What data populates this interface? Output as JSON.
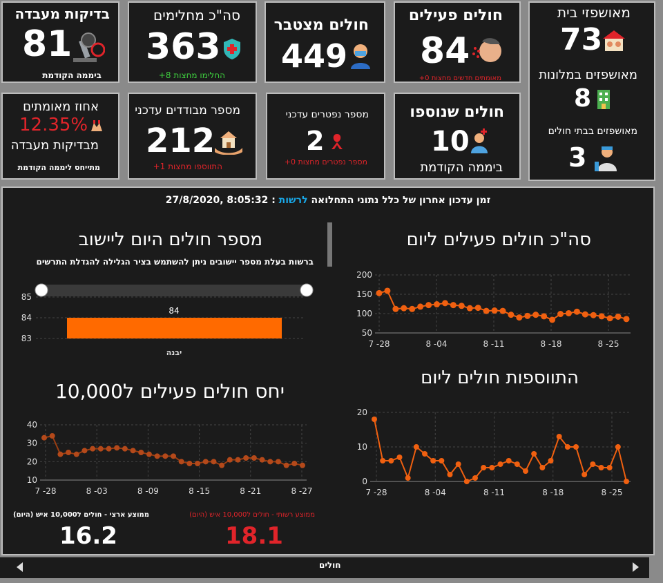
{
  "cards": {
    "lab": {
      "title": "בדיקות מעבדה",
      "value": "81",
      "sub": "ביממה הקודמת"
    },
    "recovered": {
      "title": "סה\"כ מחלימים",
      "value": "363",
      "sub": "החלימו מחצות 8+"
    },
    "cumulative": {
      "title": "חולים מצטבר",
      "value": "449"
    },
    "active": {
      "title": "חולים פעילים",
      "value": "84",
      "sub": "מאומתים חדשים מחצות 0+"
    },
    "hosp_home": {
      "title": "מאושפזי בית",
      "value": "73"
    },
    "hosp_hotel": {
      "title": "מאושפזים במלונות",
      "value": "8"
    },
    "hosp_hospital": {
      "title": "מאושפזים בבתי חולים",
      "value": "3"
    },
    "positive_pct": {
      "title": "אחוז מאומתים",
      "value": "12.35%",
      "title2": "מבדיקות מעבדה",
      "sub": "מתייחס ליממה הקודמת"
    },
    "isolated": {
      "title": "מספר מבודדים עדכני",
      "value": "212",
      "sub": "התווספו מחצות 1+"
    },
    "deaths": {
      "title": "מספר נפטרים עדכני",
      "value": "2",
      "sub": "מספר נפטרים מחצות 0+"
    },
    "new_patients": {
      "title": "חולים שנוספו",
      "value": "10",
      "sub": "ביממה הקודמת"
    }
  },
  "update": {
    "label": "זמן עדכון אחרון של כלל נתוני התחלואה",
    "authority": "לרשות",
    "sep": ":",
    "time": "8:05:32 ,27/8/2020"
  },
  "bar_panel": {
    "title": "מספר חולים היום ליישוב",
    "hint": "ברשות בעלת מספר יישובים ניתן להשתמש בציר הגלילה להגדלת התרשים"
  },
  "line1_title": "סה\"כ חולים פעילים ליום",
  "line2_title": "התווספות חולים ליום",
  "ratio_title": "יחס חולים פעילים  ל10,000",
  "stats": {
    "national_label": "ממוצע ארצי - חולים ל10,000 איש (היום)",
    "national_value": "16.2",
    "local_label": "ממוצע רשותי - חולים ל10,000 איש (היום)",
    "local_value": "18.1"
  },
  "footer_tab": "חולים",
  "colors": {
    "accent": "#ff6a00",
    "line": "#f06010",
    "red": "#e0242a",
    "green": "#3fd13f",
    "link": "#19a8e8"
  },
  "chart_data": [
    {
      "type": "bar",
      "title": "מספר חולים היום ליישוב",
      "categories": [
        "יבנה"
      ],
      "values": [
        84
      ],
      "ylim": [
        83,
        85
      ],
      "yticks": [
        83,
        84,
        85
      ]
    },
    {
      "type": "line",
      "title": "סה\"כ חולים פעילים ליום",
      "xticks": [
        "7 -28",
        "8 -04",
        "8 -11",
        "8 -18",
        "8 -25"
      ],
      "ylim": [
        50,
        200
      ],
      "yticks": [
        50,
        100,
        150,
        200
      ],
      "values": [
        153,
        159,
        112,
        114,
        112,
        118,
        122,
        124,
        127,
        122,
        120,
        114,
        115,
        107,
        108,
        107,
        97,
        90,
        94,
        97,
        93,
        84,
        99,
        101,
        105,
        98,
        96,
        93,
        88,
        92,
        86
      ]
    },
    {
      "type": "line",
      "title": "התווספות חולים ליום",
      "xticks": [
        "7 -28",
        "8 -04",
        "8 -11",
        "8 -18",
        "8 -25"
      ],
      "ylim": [
        0,
        20
      ],
      "yticks": [
        0,
        10,
        20
      ],
      "values": [
        18,
        6,
        6,
        7,
        1,
        10,
        8,
        6,
        6,
        2,
        5,
        0,
        1,
        4,
        4,
        5,
        6,
        5,
        3,
        8,
        4,
        6,
        13,
        10,
        10,
        2,
        5,
        4,
        4,
        10,
        0
      ]
    },
    {
      "type": "line",
      "title": "יחס חולים פעילים  ל10,000",
      "xticks": [
        "7 -28",
        "8 -03",
        "8 -09",
        "8 -15",
        "8 -21",
        "8 -27"
      ],
      "ylim": [
        10,
        40
      ],
      "yticks": [
        10,
        20,
        30,
        40
      ],
      "values": [
        33,
        34,
        24,
        25,
        24,
        26,
        27,
        27,
        27,
        27.5,
        27,
        26,
        25,
        24,
        23,
        23,
        23,
        20,
        19,
        19,
        20,
        20,
        18,
        21,
        21,
        22,
        22,
        21,
        20,
        20,
        18,
        19,
        18
      ]
    }
  ]
}
